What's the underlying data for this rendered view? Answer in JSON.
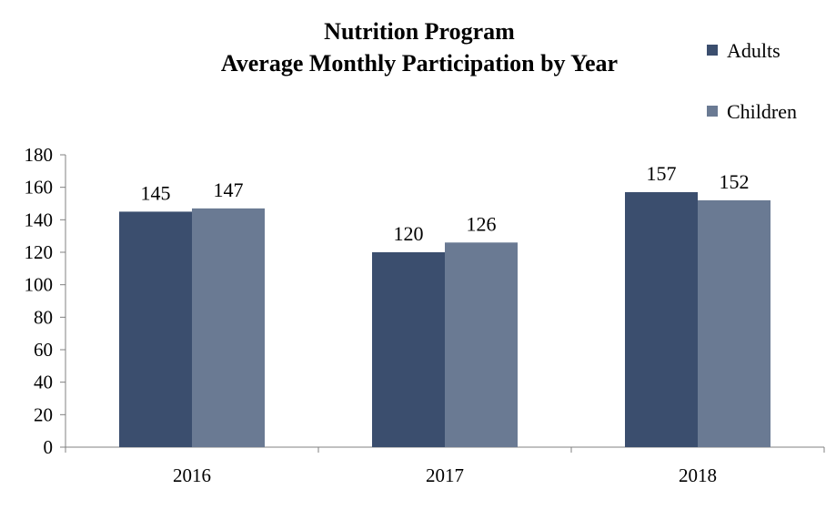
{
  "chart_data": {
    "type": "bar",
    "title": "Nutrition Program",
    "subtitle": "Average  Monthly  Participation  by  Year",
    "categories": [
      "2016",
      "2017",
      "2018"
    ],
    "series": [
      {
        "name": "Adults",
        "values": [
          145,
          120,
          157
        ],
        "color": "#3b4e6e"
      },
      {
        "name": "Children",
        "values": [
          147,
          126,
          152
        ],
        "color": "#6a7a93"
      }
    ],
    "ylim": [
      0,
      180
    ],
    "yticks": [
      0,
      20,
      40,
      60,
      80,
      100,
      120,
      140,
      160,
      180
    ],
    "grid": false,
    "legend_position": "top-right",
    "data_labels": true
  }
}
